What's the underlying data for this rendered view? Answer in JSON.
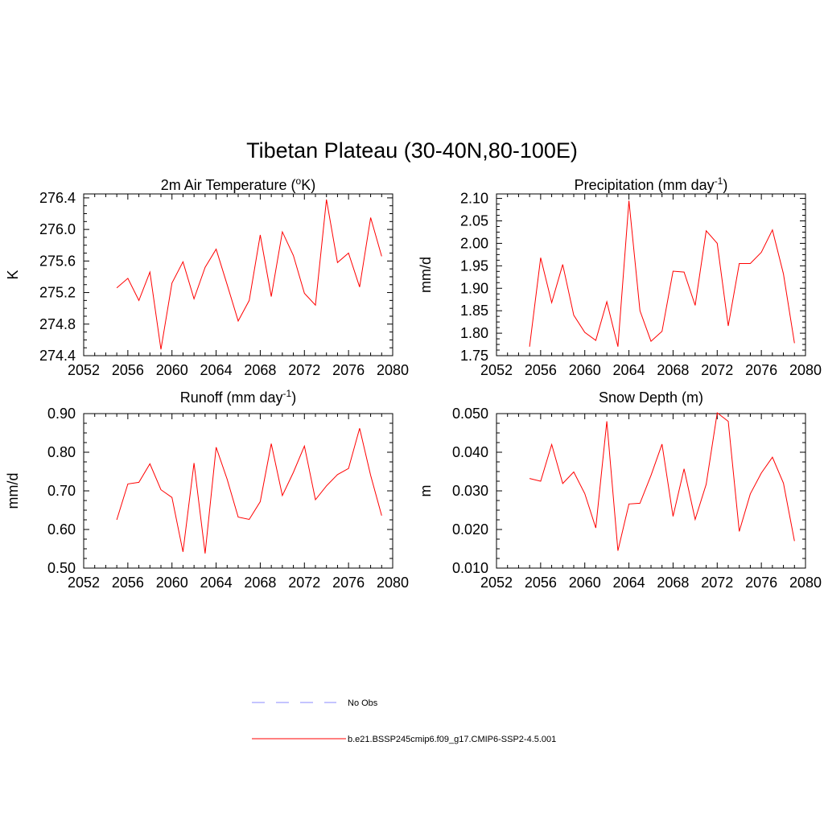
{
  "figure": {
    "title": "Tibetan Plateau (30-40N,80-100E)",
    "line_color": "#ff0000",
    "obs_color": "#b0b0ff"
  },
  "legend": {
    "placement": "bottom-center",
    "items": [
      {
        "label": "No Obs",
        "style": "dashed",
        "color": "#b0b0ff"
      },
      {
        "label": "b.e21.BSSP245cmip6.f09_g17.CMIP6-SSP2-4.5.001",
        "style": "solid",
        "color": "#ff0000"
      }
    ]
  },
  "chart_data": [
    {
      "type": "line",
      "title": "2m Air Temperature (°K)",
      "title_main": "2m Air Temperature (",
      "title_sup": "o",
      "title_end": "K)",
      "ylabel": "K",
      "xlim": [
        2052,
        2080
      ],
      "ylim": [
        274.4,
        276.45
      ],
      "x_ticks": [
        2052,
        2056,
        2060,
        2064,
        2068,
        2072,
        2076,
        2080
      ],
      "y_ticks": [
        "274.4",
        "274.8",
        "275.2",
        "275.6",
        "276.0",
        "276.4"
      ],
      "x": [
        2055,
        2056,
        2057,
        2058,
        2059,
        2060,
        2061,
        2062,
        2063,
        2064,
        2065,
        2066,
        2067,
        2068,
        2069,
        2070,
        2071,
        2072,
        2073,
        2074,
        2075,
        2076,
        2077,
        2078,
        2079
      ],
      "series": [
        {
          "name": "b.e21.BSSP245cmip6.f09_g17.CMIP6-SSP2-4.5.001",
          "values": [
            275.26,
            275.38,
            275.1,
            275.46,
            274.48,
            275.32,
            275.59,
            275.12,
            275.52,
            275.75,
            275.3,
            274.84,
            275.1,
            275.93,
            275.15,
            275.97,
            275.67,
            275.19,
            275.04,
            276.38,
            275.58,
            275.7,
            275.27,
            276.15,
            275.66
          ]
        }
      ]
    },
    {
      "type": "line",
      "title": "Precipitation (mm day-1)",
      "title_main": "Precipitation (mm day",
      "title_sup": "-1",
      "title_end": ")",
      "ylabel": "mm/d",
      "xlim": [
        2052,
        2080
      ],
      "ylim": [
        1.75,
        2.11
      ],
      "x_ticks": [
        2052,
        2056,
        2060,
        2064,
        2068,
        2072,
        2076,
        2080
      ],
      "y_ticks": [
        "1.75",
        "1.80",
        "1.85",
        "1.90",
        "1.95",
        "2.00",
        "2.05",
        "2.10"
      ],
      "x": [
        2055,
        2056,
        2057,
        2058,
        2059,
        2060,
        2061,
        2062,
        2063,
        2064,
        2065,
        2066,
        2067,
        2068,
        2069,
        2070,
        2071,
        2072,
        2073,
        2074,
        2075,
        2076,
        2077,
        2078,
        2079
      ],
      "series": [
        {
          "name": "b.e21.BSSP245cmip6.f09_g17.CMIP6-SSP2-4.5.001",
          "values": [
            1.77,
            1.968,
            1.868,
            1.953,
            1.84,
            1.802,
            1.784,
            1.87,
            1.77,
            2.095,
            1.85,
            1.782,
            1.804,
            1.938,
            1.936,
            1.862,
            2.028,
            2.0,
            1.816,
            1.955,
            1.955,
            1.98,
            2.03,
            1.932,
            1.778
          ]
        }
      ]
    },
    {
      "type": "line",
      "title": "Runoff (mm day-1)",
      "title_main": "Runoff (mm day",
      "title_sup": "-1",
      "title_end": ")",
      "ylabel": "mm/d",
      "xlim": [
        2052,
        2080
      ],
      "ylim": [
        0.5,
        0.9
      ],
      "x_ticks": [
        2052,
        2056,
        2060,
        2064,
        2068,
        2072,
        2076,
        2080
      ],
      "y_ticks": [
        "0.50",
        "0.60",
        "0.70",
        "0.80",
        "0.90"
      ],
      "x": [
        2055,
        2056,
        2057,
        2058,
        2059,
        2060,
        2061,
        2062,
        2063,
        2064,
        2065,
        2066,
        2067,
        2068,
        2069,
        2070,
        2071,
        2072,
        2073,
        2074,
        2075,
        2076,
        2077,
        2078,
        2079
      ],
      "series": [
        {
          "name": "b.e21.BSSP245cmip6.f09_g17.CMIP6-SSP2-4.5.001",
          "values": [
            0.625,
            0.718,
            0.722,
            0.77,
            0.703,
            0.683,
            0.542,
            0.772,
            0.538,
            0.813,
            0.73,
            0.632,
            0.626,
            0.672,
            0.822,
            0.688,
            0.748,
            0.816,
            0.677,
            0.713,
            0.742,
            0.758,
            0.862,
            0.74,
            0.636
          ]
        }
      ]
    },
    {
      "type": "line",
      "title": "Snow Depth (m)",
      "title_main": "Snow Depth (m)",
      "title_sup": "",
      "title_end": "",
      "ylabel": "m",
      "xlim": [
        2052,
        2080
      ],
      "ylim": [
        0.01,
        0.05
      ],
      "x_ticks": [
        2052,
        2056,
        2060,
        2064,
        2068,
        2072,
        2076,
        2080
      ],
      "y_ticks": [
        "0.010",
        "0.020",
        "0.030",
        "0.040",
        "0.050"
      ],
      "x": [
        2055,
        2056,
        2057,
        2058,
        2059,
        2060,
        2061,
        2062,
        2063,
        2064,
        2065,
        2066,
        2067,
        2068,
        2069,
        2070,
        2071,
        2072,
        2073,
        2074,
        2075,
        2076,
        2077,
        2078,
        2079
      ],
      "series": [
        {
          "name": "b.e21.BSSP245cmip6.f09_g17.CMIP6-SSP2-4.5.001",
          "values": [
            0.0332,
            0.0325,
            0.042,
            0.0319,
            0.0349,
            0.0293,
            0.0204,
            0.048,
            0.0145,
            0.0266,
            0.0268,
            0.034,
            0.0421,
            0.0234,
            0.0357,
            0.0226,
            0.0317,
            0.0502,
            0.048,
            0.0195,
            0.0292,
            0.0346,
            0.0387,
            0.032,
            0.017
          ]
        }
      ]
    }
  ]
}
